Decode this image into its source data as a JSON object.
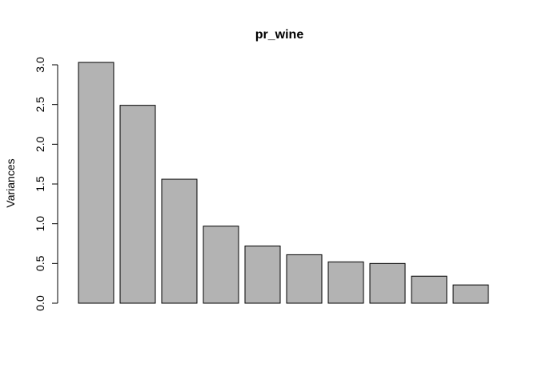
{
  "chart_data": {
    "type": "bar",
    "title": "pr_wine",
    "xlabel": "",
    "ylabel": "Variances",
    "categories": [
      "",
      "",
      "",
      "",
      "",
      "",
      "",
      "",
      "",
      ""
    ],
    "values": [
      3.03,
      2.49,
      1.56,
      0.97,
      0.72,
      0.61,
      0.52,
      0.5,
      0.34,
      0.23
    ],
    "ylim": [
      0,
      3.0
    ],
    "yticks": [
      "0.0",
      "0.5",
      "1.0",
      "1.5",
      "2.0",
      "2.5",
      "3.0"
    ],
    "bar_color": "#b3b3b3",
    "grid": false,
    "legend": "none"
  }
}
